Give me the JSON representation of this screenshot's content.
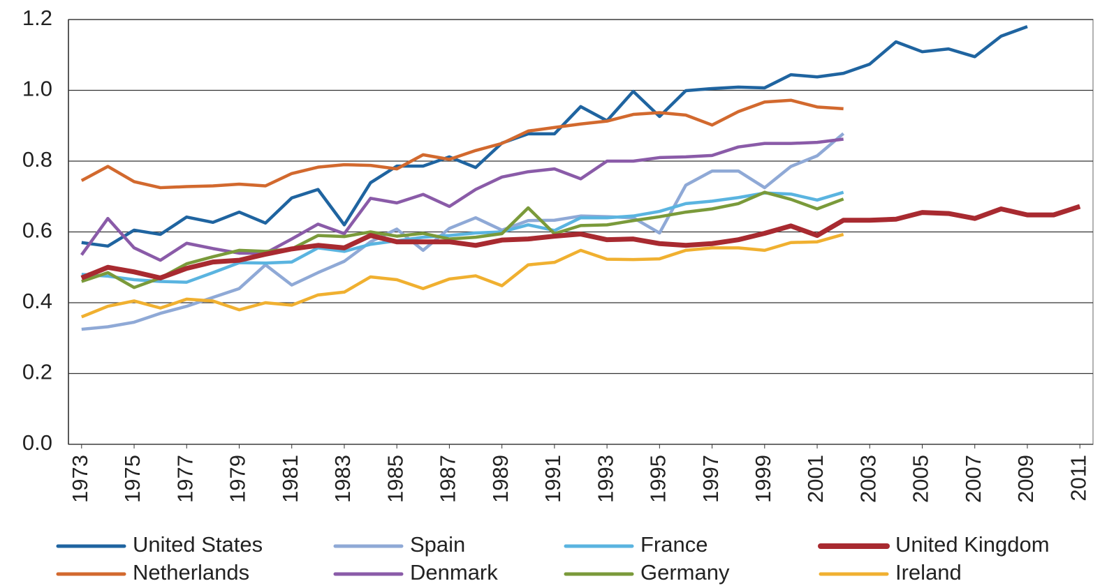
{
  "chart_data": {
    "type": "line",
    "x": [
      1973,
      1974,
      1975,
      1976,
      1977,
      1978,
      1979,
      1980,
      1981,
      1982,
      1983,
      1984,
      1985,
      1986,
      1987,
      1988,
      1989,
      1990,
      1991,
      1992,
      1993,
      1994,
      1995,
      1996,
      1997,
      1998,
      1999,
      2000,
      2001,
      2002,
      2003,
      2004,
      2005,
      2006,
      2007,
      2008,
      2009,
      2010,
      2011
    ],
    "xlim": [
      1972.5,
      2011.5
    ],
    "xticks": [
      1973,
      1975,
      1977,
      1979,
      1981,
      1983,
      1985,
      1987,
      1989,
      1991,
      1993,
      1995,
      1997,
      1999,
      2001,
      2003,
      2005,
      2007,
      2009,
      2011
    ],
    "ylim": [
      0,
      1.2
    ],
    "yticks": [
      {
        "value": 0,
        "label": "0.0"
      },
      0.2,
      0.4,
      0.6,
      0.8,
      {
        "value": 1,
        "label": "1.0"
      },
      1.2
    ],
    "grid": true,
    "legend": "bottom",
    "series": [
      {
        "name": "United States",
        "color": "#1f64a0",
        "values": [
          0.57,
          0.56,
          0.605,
          0.593,
          0.642,
          0.627,
          0.656,
          0.625,
          0.696,
          0.72,
          0.62,
          0.739,
          0.786,
          0.786,
          0.812,
          0.782,
          0.851,
          0.877,
          0.877,
          0.954,
          0.914,
          0.997,
          0.926,
          0.999,
          1.005,
          1.009,
          1.007,
          1.044,
          1.038,
          1.048,
          1.074,
          1.137,
          1.109,
          1.117,
          1.095,
          1.153,
          1.18,
          null,
          null
        ]
      },
      {
        "name": "Netherlands",
        "color": "#d2692e",
        "values": [
          0.745,
          0.785,
          0.742,
          0.725,
          0.728,
          0.73,
          0.735,
          0.73,
          0.765,
          0.783,
          0.79,
          0.788,
          0.778,
          0.818,
          0.805,
          0.83,
          0.85,
          0.885,
          0.895,
          0.905,
          0.913,
          0.932,
          0.937,
          0.93,
          0.902,
          0.94,
          0.967,
          0.972,
          0.953,
          0.948,
          null,
          null,
          null,
          null,
          null,
          null,
          null,
          null,
          null
        ]
      },
      {
        "name": "Spain",
        "color": "#8fa9d6",
        "values": [
          0.325,
          0.332,
          0.345,
          0.37,
          0.39,
          0.415,
          0.44,
          0.507,
          0.45,
          0.485,
          0.517,
          0.572,
          0.608,
          0.548,
          0.61,
          0.64,
          0.605,
          0.632,
          0.633,
          0.645,
          0.643,
          0.64,
          0.597,
          0.732,
          0.772,
          0.772,
          0.725,
          0.785,
          0.815,
          0.878,
          null,
          null,
          null,
          null,
          null,
          null,
          null,
          null,
          null
        ]
      },
      {
        "name": "Denmark",
        "color": "#8a5ba8",
        "values": [
          0.535,
          0.638,
          0.555,
          0.52,
          0.568,
          0.553,
          0.54,
          0.54,
          0.58,
          0.622,
          0.595,
          0.695,
          0.682,
          0.706,
          0.672,
          0.72,
          0.755,
          0.77,
          0.778,
          0.75,
          0.8,
          0.8,
          0.81,
          0.812,
          0.816,
          0.84,
          0.85,
          0.85,
          0.853,
          0.862,
          null,
          null,
          null,
          null,
          null,
          null,
          null,
          null,
          null
        ]
      },
      {
        "name": "France",
        "color": "#5ab4e0",
        "values": [
          0.48,
          0.475,
          0.465,
          0.46,
          0.458,
          0.485,
          0.513,
          0.512,
          0.515,
          0.555,
          0.545,
          0.565,
          0.575,
          0.585,
          0.59,
          0.597,
          0.6,
          0.62,
          0.604,
          0.64,
          0.64,
          0.645,
          0.658,
          0.68,
          0.687,
          0.697,
          0.71,
          0.707,
          0.69,
          0.712,
          null,
          null,
          null,
          null,
          null,
          null,
          null,
          null,
          null
        ]
      },
      {
        "name": "Germany",
        "color": "#7a9a3a",
        "values": [
          0.46,
          0.485,
          0.443,
          0.47,
          0.51,
          0.53,
          0.548,
          0.545,
          0.552,
          0.59,
          0.587,
          0.6,
          0.588,
          0.596,
          0.58,
          0.585,
          0.595,
          0.668,
          0.595,
          0.618,
          0.62,
          0.632,
          0.643,
          0.656,
          0.665,
          0.68,
          0.712,
          0.692,
          0.665,
          0.693,
          null,
          null,
          null,
          null,
          null,
          null,
          null,
          null,
          null
        ]
      },
      {
        "name": "United Kingdom",
        "color": "#a82a30",
        "values": [
          0.47,
          0.5,
          0.487,
          0.47,
          0.497,
          0.515,
          0.52,
          0.537,
          0.552,
          0.562,
          0.555,
          0.59,
          0.572,
          0.572,
          0.572,
          0.562,
          0.577,
          0.58,
          0.588,
          0.594,
          0.578,
          0.58,
          0.567,
          0.562,
          0.567,
          0.578,
          0.596,
          0.617,
          0.59,
          0.633,
          0.633,
          0.636,
          0.655,
          0.652,
          0.638,
          0.665,
          0.648,
          0.648,
          0.672
        ]
      },
      {
        "name": "Ireland",
        "color": "#f0b030",
        "values": [
          0.36,
          0.39,
          0.405,
          0.385,
          0.41,
          0.405,
          0.38,
          0.4,
          0.393,
          0.422,
          0.43,
          0.473,
          0.465,
          0.44,
          0.467,
          0.476,
          0.448,
          0.507,
          0.514,
          0.548,
          0.523,
          0.522,
          0.524,
          0.548,
          0.555,
          0.555,
          0.548,
          0.57,
          0.572,
          0.593,
          null,
          null,
          null,
          null,
          null,
          null,
          null,
          null,
          null
        ]
      }
    ]
  }
}
